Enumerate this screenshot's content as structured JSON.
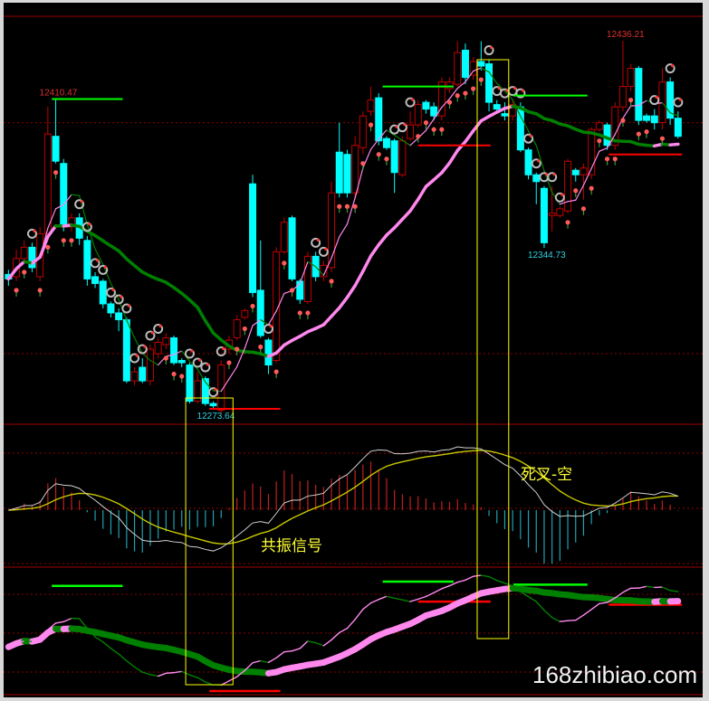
{
  "chart_data": {
    "type": "candlestick",
    "colors": {
      "up": "#c00000",
      "down": "#00ffff",
      "ma_rising": "#ff88ee",
      "ma_falling": "#008000",
      "macd_dif": "#d0d0d0",
      "macd_dea": "#c8c800",
      "hist_pos": "#c02020",
      "hist_neg": "#20a0b0",
      "highlight_box": "#ffff00",
      "border": "#a00000"
    },
    "candles": [
      [
        12333,
        12335,
        12328,
        12331
      ],
      [
        12332,
        12344,
        12330,
        12340
      ],
      [
        12340,
        12348,
        12338,
        12345
      ],
      [
        12345,
        12347,
        12334,
        12336
      ],
      [
        12332,
        12354,
        12330,
        12351
      ],
      [
        12351,
        12407,
        12349,
        12395
      ],
      [
        12394,
        12410.47,
        12382,
        12383
      ],
      [
        12382,
        12384,
        12352,
        12354
      ],
      [
        12354,
        12360,
        12352,
        12358
      ],
      [
        12358,
        12360,
        12346,
        12349
      ],
      [
        12348,
        12350,
        12328,
        12331
      ],
      [
        12332,
        12334,
        12327,
        12329
      ],
      [
        12330,
        12331,
        12318,
        12320
      ],
      [
        12320,
        12321,
        12314,
        12316
      ],
      [
        12316,
        12318,
        12308,
        12313
      ],
      [
        12313,
        12314,
        12285,
        12286
      ],
      [
        12286,
        12292,
        12284,
        12290
      ],
      [
        12292,
        12296,
        12285,
        12286
      ],
      [
        12286,
        12302,
        12284,
        12300
      ],
      [
        12298,
        12305,
        12296,
        12303
      ],
      [
        12302,
        12307,
        12300,
        12305
      ],
      [
        12305,
        12306,
        12293,
        12294
      ],
      [
        12295,
        12296,
        12292,
        12294
      ],
      [
        12293,
        12294,
        12276,
        12277
      ],
      [
        12277,
        12290,
        12276,
        12286
      ],
      [
        12287,
        12288,
        12275,
        12276
      ],
      [
        12276,
        12277,
        12273.64,
        12275
      ],
      [
        12273,
        12295,
        12272,
        12293
      ],
      [
        12300,
        12306,
        12298,
        12304
      ],
      [
        12305,
        12315,
        12304,
        12313
      ],
      [
        12314,
        12318,
        12313,
        12317
      ],
      [
        12373,
        12377,
        12323,
        12325
      ],
      [
        12326,
        12348,
        12305,
        12306
      ],
      [
        12304,
        12305,
        12289,
        12293
      ],
      [
        12295,
        12345,
        12294,
        12343
      ],
      [
        12343,
        12358,
        12342,
        12356
      ],
      [
        12358,
        12359,
        12330,
        12331
      ],
      [
        12330,
        12331,
        12320,
        12322
      ],
      [
        12321,
        12343,
        12320,
        12341
      ],
      [
        12341,
        12343,
        12330,
        12332
      ],
      [
        12332,
        12339,
        12330,
        12337
      ],
      [
        12336,
        12374,
        12334,
        12369
      ],
      [
        12387,
        12400,
        12367,
        12369
      ],
      [
        12386,
        12388,
        12367,
        12369
      ],
      [
        12369,
        12394,
        12367,
        12390
      ],
      [
        12389,
        12405,
        12386,
        12403
      ],
      [
        12405,
        12416,
        12403,
        12410
      ],
      [
        12411,
        12413,
        12390,
        12392
      ],
      [
        12393,
        12394,
        12388,
        12389
      ],
      [
        12392,
        12393,
        12369,
        12378
      ],
      [
        12377,
        12394,
        12376,
        12392
      ],
      [
        12393,
        12405,
        12392,
        12399
      ],
      [
        12399,
        12410,
        12398,
        12408
      ],
      [
        12409,
        12410,
        12404,
        12406
      ],
      [
        12407,
        12409,
        12401,
        12403
      ],
      [
        12403,
        12420,
        12401,
        12418
      ],
      [
        12415,
        12420,
        12413,
        12418
      ],
      [
        12417,
        12436,
        12416,
        12431
      ],
      [
        12432,
        12435,
        12417,
        12420
      ],
      [
        12421,
        12429,
        12419,
        12427
      ],
      [
        12427,
        12436,
        12423,
        12425
      ],
      [
        12426,
        12428,
        12405,
        12409
      ],
      [
        12408,
        12410,
        12404,
        12406
      ],
      [
        12404,
        12409,
        12401,
        12403
      ],
      [
        12403,
        12410,
        12401,
        12408
      ],
      [
        12407,
        12409,
        12387,
        12388
      ],
      [
        12388,
        12389,
        12375,
        12377
      ],
      [
        12377,
        12378,
        12364,
        12374
      ],
      [
        12371,
        12372,
        12344.73,
        12347
      ],
      [
        12359,
        12372,
        12352,
        12360
      ],
      [
        12359,
        12363,
        12358,
        12362
      ],
      [
        12361,
        12384,
        12360,
        12383
      ],
      [
        12379,
        12380,
        12374,
        12377
      ],
      [
        12377,
        12382,
        12366,
        12380
      ],
      [
        12377,
        12398,
        12375,
        12397
      ],
      [
        12397,
        12401,
        12396,
        12400
      ],
      [
        12399,
        12400,
        12388,
        12390
      ],
      [
        12390,
        12409,
        12388,
        12407
      ],
      [
        12407,
        12436.21,
        12405,
        12416
      ],
      [
        12416,
        12426,
        12414,
        12424
      ],
      [
        12424,
        12425,
        12399,
        12401
      ],
      [
        12403,
        12404,
        12400,
        12401
      ],
      [
        12403,
        12406,
        12397,
        12400
      ],
      [
        12400,
        12424,
        12397,
        12418
      ],
      [
        12418,
        12420,
        12399,
        12402
      ],
      [
        12402,
        12405,
        12393,
        12394
      ]
    ],
    "candle_format": [
      "open",
      "high",
      "low",
      "close"
    ],
    "moving_averages": {
      "short_period": 5,
      "long_period": 20
    },
    "price_labels": [
      {
        "candle": 6,
        "text": "12410.47",
        "position": "above",
        "color": "#e03030"
      },
      {
        "candle": 26,
        "text": "12273.64",
        "position": "below",
        "color": "#30d0e0"
      },
      {
        "candle": 78,
        "text": "12436.21",
        "position": "above",
        "color": "#e03030"
      },
      {
        "candle": 68,
        "text": "12344.73",
        "position": "below",
        "color": "#30d0e0"
      }
    ],
    "level_lines": [
      {
        "price": 12410.47,
        "from": 6,
        "to": 15,
        "color": "#00ff00"
      },
      {
        "price": 12273.64,
        "from": 26,
        "to": 35,
        "color": "#ff0000"
      },
      {
        "price": 12416,
        "from": 48,
        "to": 57,
        "color": "#00ff00"
      },
      {
        "price": 12390,
        "from": 52.5,
        "to": 61.7,
        "color": "#ff0000"
      },
      {
        "price": 12412,
        "from": 64.6,
        "to": 74,
        "color": "#00ff00"
      },
      {
        "price": 12386,
        "from": 76.7,
        "to": 86,
        "color": "#ff0000"
      }
    ],
    "grid_levels": [
      12400,
      12298
    ],
    "highlight_ranges": [
      {
        "from": 23,
        "to": 28
      },
      {
        "from": 60,
        "to": 63
      }
    ],
    "macd": {
      "fast": 12,
      "slow": 26,
      "signal": 9
    },
    "annotations": {
      "resonance": "共振信号",
      "death_cross": "死叉-空"
    },
    "watermark": "168zhibiao.com"
  }
}
